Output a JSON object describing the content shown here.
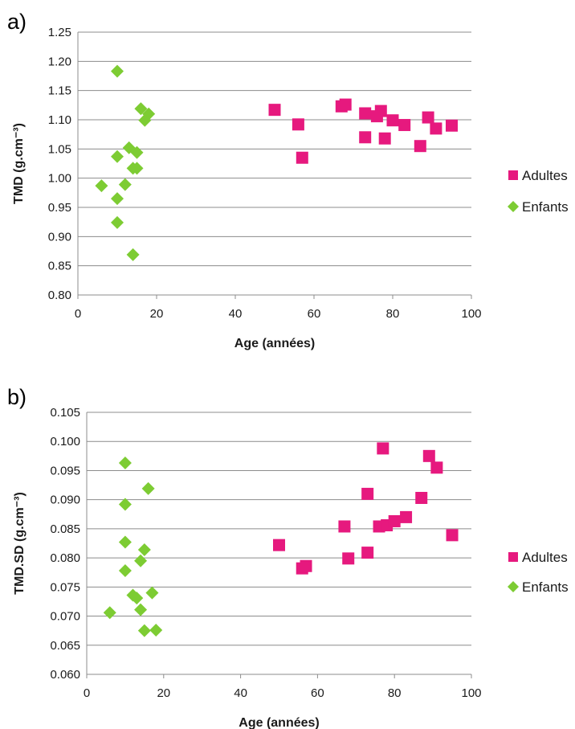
{
  "chart_data": [
    {
      "type": "scatter",
      "panel_label": "a)",
      "xlabel": "Age (années)",
      "ylabel": "TMD (g.cm⁻³)",
      "xlim": [
        0,
        100
      ],
      "ylim": [
        0.8,
        1.25
      ],
      "x_ticks": [
        "0",
        "20",
        "40",
        "60",
        "80",
        "100"
      ],
      "y_ticks": [
        "0.80",
        "0.85",
        "0.90",
        "0.95",
        "1.00",
        "1.05",
        "1.10",
        "1.15",
        "1.20",
        "1.25"
      ],
      "grid": "horizontal",
      "legend_position": "right",
      "series": [
        {
          "name": "Adultes",
          "marker": "square",
          "color": "#e6197e",
          "points": [
            [
              50,
              1.117
            ],
            [
              56,
              1.092
            ],
            [
              57,
              1.035
            ],
            [
              67,
              1.123
            ],
            [
              68,
              1.126
            ],
            [
              73,
              1.111
            ],
            [
              73,
              1.07
            ],
            [
              76,
              1.106
            ],
            [
              77,
              1.115
            ],
            [
              78,
              1.068
            ],
            [
              80,
              1.099
            ],
            [
              83,
              1.091
            ],
            [
              87,
              1.055
            ],
            [
              89,
              1.104
            ],
            [
              91,
              1.085
            ],
            [
              95,
              1.09
            ]
          ]
        },
        {
          "name": "Enfants",
          "marker": "diamond",
          "color": "#7dcc33",
          "points": [
            [
              6,
              0.987
            ],
            [
              10,
              1.183
            ],
            [
              10,
              1.037
            ],
            [
              10,
              0.965
            ],
            [
              10,
              0.924
            ],
            [
              12,
              0.989
            ],
            [
              13,
              1.052
            ],
            [
              14,
              1.017
            ],
            [
              14,
              0.869
            ],
            [
              15,
              1.044
            ],
            [
              15,
              1.017
            ],
            [
              16,
              1.119
            ],
            [
              17,
              1.099
            ],
            [
              18,
              1.11
            ]
          ]
        }
      ]
    },
    {
      "type": "scatter",
      "panel_label": "b)",
      "xlabel": "Age (années)",
      "ylabel": "TMD.SD (g.cm⁻³)",
      "xlim": [
        0,
        100
      ],
      "ylim": [
        0.06,
        0.105
      ],
      "x_ticks": [
        "0",
        "20",
        "40",
        "60",
        "80",
        "100"
      ],
      "y_ticks": [
        "0.060",
        "0.065",
        "0.070",
        "0.075",
        "0.080",
        "0.085",
        "0.090",
        "0.095",
        "0.100",
        "0.105"
      ],
      "grid": "horizontal",
      "legend_position": "right",
      "series": [
        {
          "name": "Adultes",
          "marker": "square",
          "color": "#e6197e",
          "points": [
            [
              50,
              0.0822
            ],
            [
              56,
              0.0782
            ],
            [
              57,
              0.0786
            ],
            [
              67,
              0.0854
            ],
            [
              68,
              0.0799
            ],
            [
              73,
              0.091
            ],
            [
              73,
              0.0809
            ],
            [
              76,
              0.0854
            ],
            [
              77,
              0.0988
            ],
            [
              78,
              0.0856
            ],
            [
              80,
              0.0863
            ],
            [
              83,
              0.087
            ],
            [
              87,
              0.0903
            ],
            [
              89,
              0.0975
            ],
            [
              91,
              0.0955
            ],
            [
              95,
              0.0839
            ]
          ]
        },
        {
          "name": "Enfants",
          "marker": "diamond",
          "color": "#7dcc33",
          "points": [
            [
              6,
              0.0706
            ],
            [
              10,
              0.0963
            ],
            [
              10,
              0.0892
            ],
            [
              10,
              0.0827
            ],
            [
              10,
              0.0778
            ],
            [
              12,
              0.0736
            ],
            [
              13,
              0.0731
            ],
            [
              14,
              0.0795
            ],
            [
              14,
              0.0711
            ],
            [
              15,
              0.0814
            ],
            [
              15,
              0.0675
            ],
            [
              16,
              0.0919
            ],
            [
              17,
              0.074
            ],
            [
              18,
              0.0676
            ]
          ]
        }
      ]
    }
  ]
}
